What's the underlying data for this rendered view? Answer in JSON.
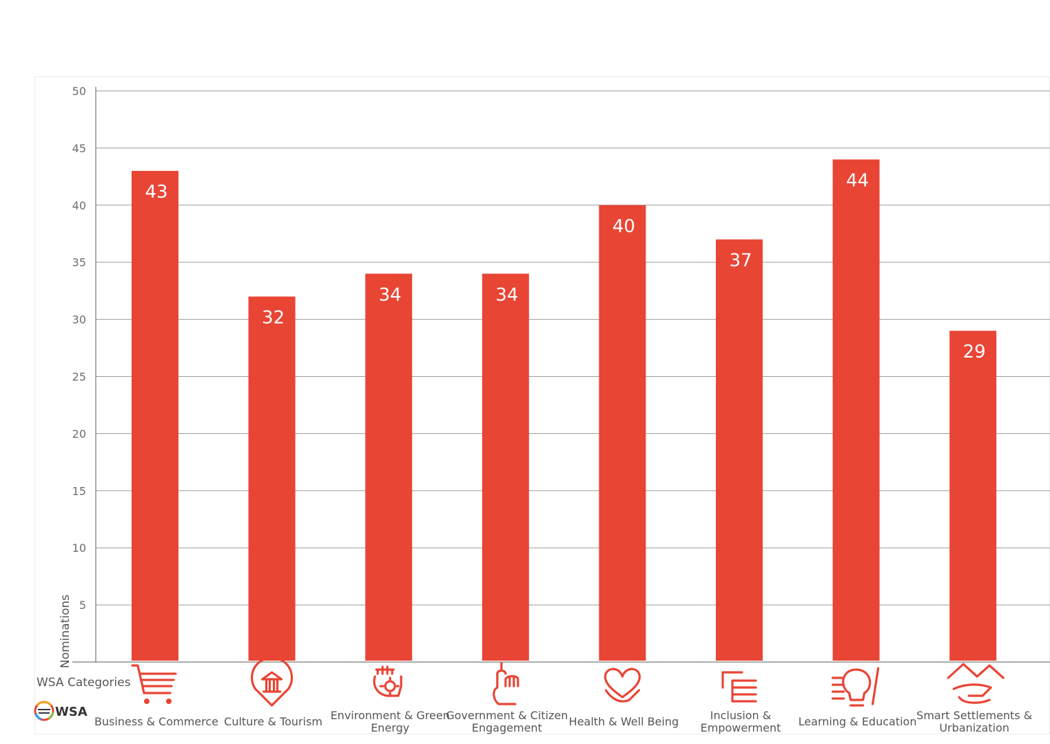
{
  "chart_data": {
    "type": "bar",
    "title": "",
    "xlabel": "WSA Categories",
    "ylabel": "Nominations",
    "ylim": [
      0,
      50
    ],
    "yticks": [
      5,
      10,
      15,
      20,
      25,
      30,
      35,
      40,
      45,
      50
    ],
    "grid": true,
    "legend": "none",
    "bar_color": "#e84535",
    "categories": [
      [
        "Business & Commerce"
      ],
      [
        "Culture & Tourism"
      ],
      [
        "Environment & Green",
        "Energy"
      ],
      [
        "Government & Citizen",
        "Engagement"
      ],
      [
        "Health & Well Being"
      ],
      [
        "Inclusion &",
        "Empowerment"
      ],
      [
        "Learning & Education"
      ],
      [
        "Smart Settlements &",
        "Urbanization"
      ]
    ],
    "values": [
      43,
      32,
      34,
      34,
      40,
      37,
      44,
      29
    ],
    "icons": [
      "shopping-cart-icon",
      "museum-pin-icon",
      "hand-sun-icon",
      "pointing-hand-icon",
      "heart-hand-icon",
      "hand-card-icon",
      "lightbulb-hand-icon",
      "roof-hand-icon"
    ]
  },
  "logo": {
    "text": "WSA"
  }
}
